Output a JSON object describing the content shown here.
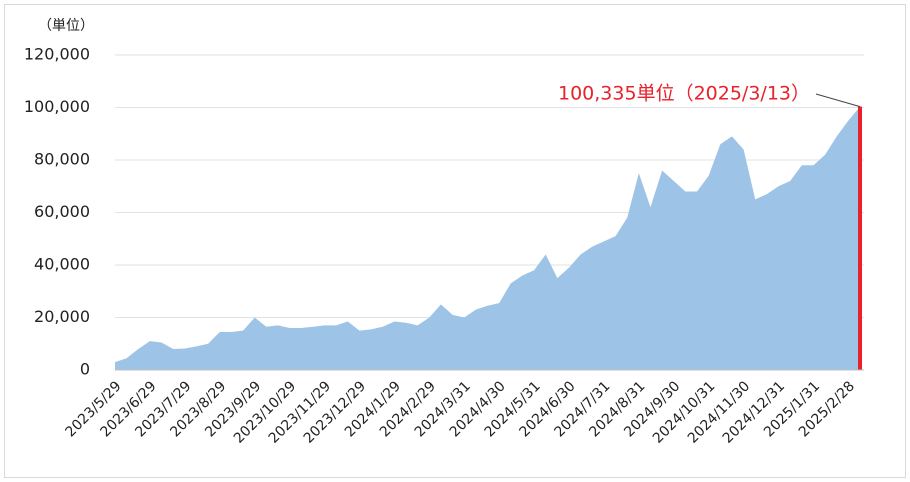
{
  "chart_data": {
    "type": "area",
    "unit_label": "（単位）",
    "annotation": "100,335単位（2025/3/13）",
    "annotation_color": "#e8212b",
    "categories": [
      "2023/5/29",
      null,
      null,
      "2023/6/29",
      null,
      null,
      "2023/7/29",
      null,
      null,
      "2023/8/29",
      null,
      null,
      "2023/9/29",
      null,
      null,
      "2023/10/29",
      null,
      null,
      "2023/11/29",
      null,
      null,
      "2023/12/29",
      null,
      null,
      "2024/1/29",
      null,
      null,
      "2024/2/29",
      null,
      null,
      "2024/3/31",
      null,
      null,
      "2024/4/30",
      null,
      null,
      "2024/5/31",
      null,
      null,
      "2024/6/30",
      null,
      null,
      "2024/7/31",
      null,
      null,
      "2024/8/31",
      null,
      null,
      "2024/9/30",
      null,
      null,
      "2024/10/31",
      null,
      null,
      "2024/11/30",
      null,
      null,
      "2024/12/31",
      null,
      null,
      "2025/1/31",
      null,
      null,
      "2025/2/28",
      null
    ],
    "series": [
      {
        "color": "#9dc3e6",
        "highlight_color": "#e8212b",
        "values": [
          3000,
          4500,
          8000,
          11000,
          10500,
          8000,
          8200,
          9000,
          10000,
          14500,
          14500,
          15000,
          20000,
          16500,
          17000,
          16000,
          16000,
          16500,
          17000,
          17000,
          18500,
          15000,
          15500,
          16500,
          18500,
          18000,
          17000,
          20000,
          25000,
          21000,
          20000,
          23000,
          24500,
          25500,
          33000,
          36000,
          38000,
          44000,
          35000,
          39000,
          44000,
          47000,
          49000,
          51000,
          58000,
          75000,
          62000,
          76000,
          72000,
          68000,
          68000,
          74000,
          86000,
          89000,
          84000,
          65000,
          67000,
          70000,
          72000,
          78000,
          78000,
          82000,
          89000,
          95000,
          100335
        ]
      }
    ],
    "ylim": [
      0,
      120000
    ],
    "yticks": [
      0,
      {
        "value": 20000,
        "label": "20,000"
      },
      {
        "value": 40000,
        "label": "40,000"
      },
      {
        "value": 60000,
        "label": "60,000"
      },
      {
        "value": 80000,
        "label": "80,000"
      },
      {
        "value": 100000,
        "label": "100,000"
      },
      {
        "value": 120000,
        "label": "120,000"
      }
    ],
    "grid": true
  }
}
